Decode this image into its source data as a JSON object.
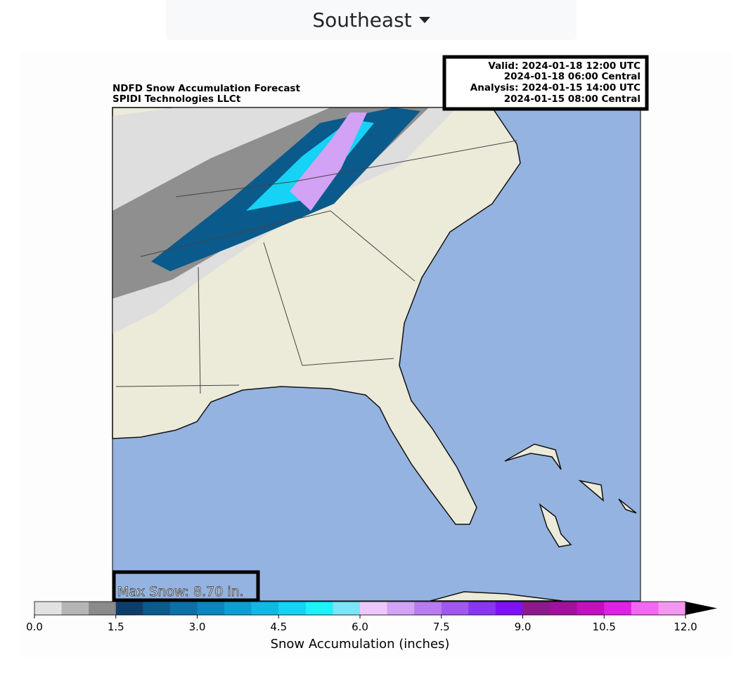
{
  "dropdown": {
    "label": "Southeast"
  },
  "map": {
    "title": "NDFD Snow Accumulation Forecast",
    "subtitle": "SPIDI Technologies LLCt",
    "info": [
      "Valid: 2024-01-18 12:00 UTC",
      "2024-01-18 06:00 Central",
      "Analysis: 2024-01-15 14:00 UTC",
      "2024-01-15 08:00 Central"
    ],
    "max_snow": "Max Snow: 8.70 in."
  },
  "colorbar": {
    "label": "Snow Accumulation (inches)",
    "ticks": [
      "0.0",
      "1.5",
      "3.0",
      "4.5",
      "6.0",
      "7.5",
      "9.0",
      "10.5",
      "12.0"
    ],
    "colors": [
      "#e2e2e2",
      "#b5b5b5",
      "#8a8a8a",
      "#0f3d6b",
      "#0a5a8c",
      "#0a70a6",
      "#0b86be",
      "#0d9fd4",
      "#10b8e6",
      "#16d2f4",
      "#1ef0fc",
      "#7ae4f8",
      "#ecc8fa",
      "#d2a2f4",
      "#b87cf0",
      "#a058ee",
      "#8a34f4",
      "#8010f8",
      "#8c1a8c",
      "#a4109e",
      "#c010c0",
      "#e020e4",
      "#f466f4",
      "#f496f0",
      "#ecc4f4"
    ],
    "extend_color": "#000000"
  }
}
